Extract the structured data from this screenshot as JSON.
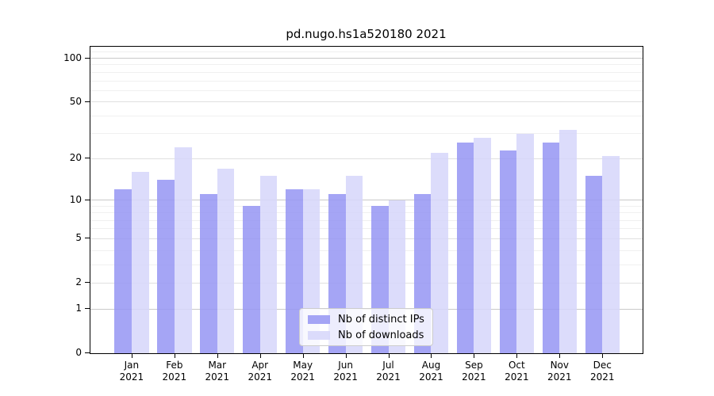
{
  "chart_data": {
    "type": "bar",
    "title": "pd.nugo.hs1a520180 2021",
    "year_label": "2021",
    "categories": [
      "Jan",
      "Feb",
      "Mar",
      "Apr",
      "May",
      "Jun",
      "Jul",
      "Aug",
      "Sep",
      "Oct",
      "Nov",
      "Dec"
    ],
    "series": [
      {
        "name": "Nb of distinct IPs",
        "color": "rgba(150,150,243,0.86)",
        "solid_color": "#a5a5f5",
        "values": [
          12,
          14,
          11,
          9,
          12,
          11,
          9,
          11,
          26,
          23,
          26,
          15
        ]
      },
      {
        "name": "Nb of downloads",
        "color": "rgba(214,214,250,0.86)",
        "solid_color": "#dcdcfa",
        "values": [
          16,
          24,
          17,
          15,
          12,
          15,
          10,
          22,
          28,
          30,
          32,
          21
        ]
      }
    ],
    "yscale": "log1p",
    "ylim": [
      0,
      120
    ],
    "yticks_labeled": [
      0,
      1,
      2,
      5,
      10,
      20,
      50,
      100
    ],
    "yticks_major": [
      1,
      10,
      100
    ],
    "yticks_mid": [
      2,
      5,
      20,
      50
    ],
    "yticks_minor": [
      3,
      4,
      6,
      7,
      8,
      9,
      30,
      40,
      60,
      70,
      80,
      90,
      110
    ],
    "grid": "both",
    "legend_position": "lower center",
    "colors": {
      "grid_major": "#c9c9c9",
      "grid_mid": "#e0e0e0",
      "grid_minor": "#f0f0f0",
      "axis": "#000000",
      "text": "#000000"
    }
  }
}
